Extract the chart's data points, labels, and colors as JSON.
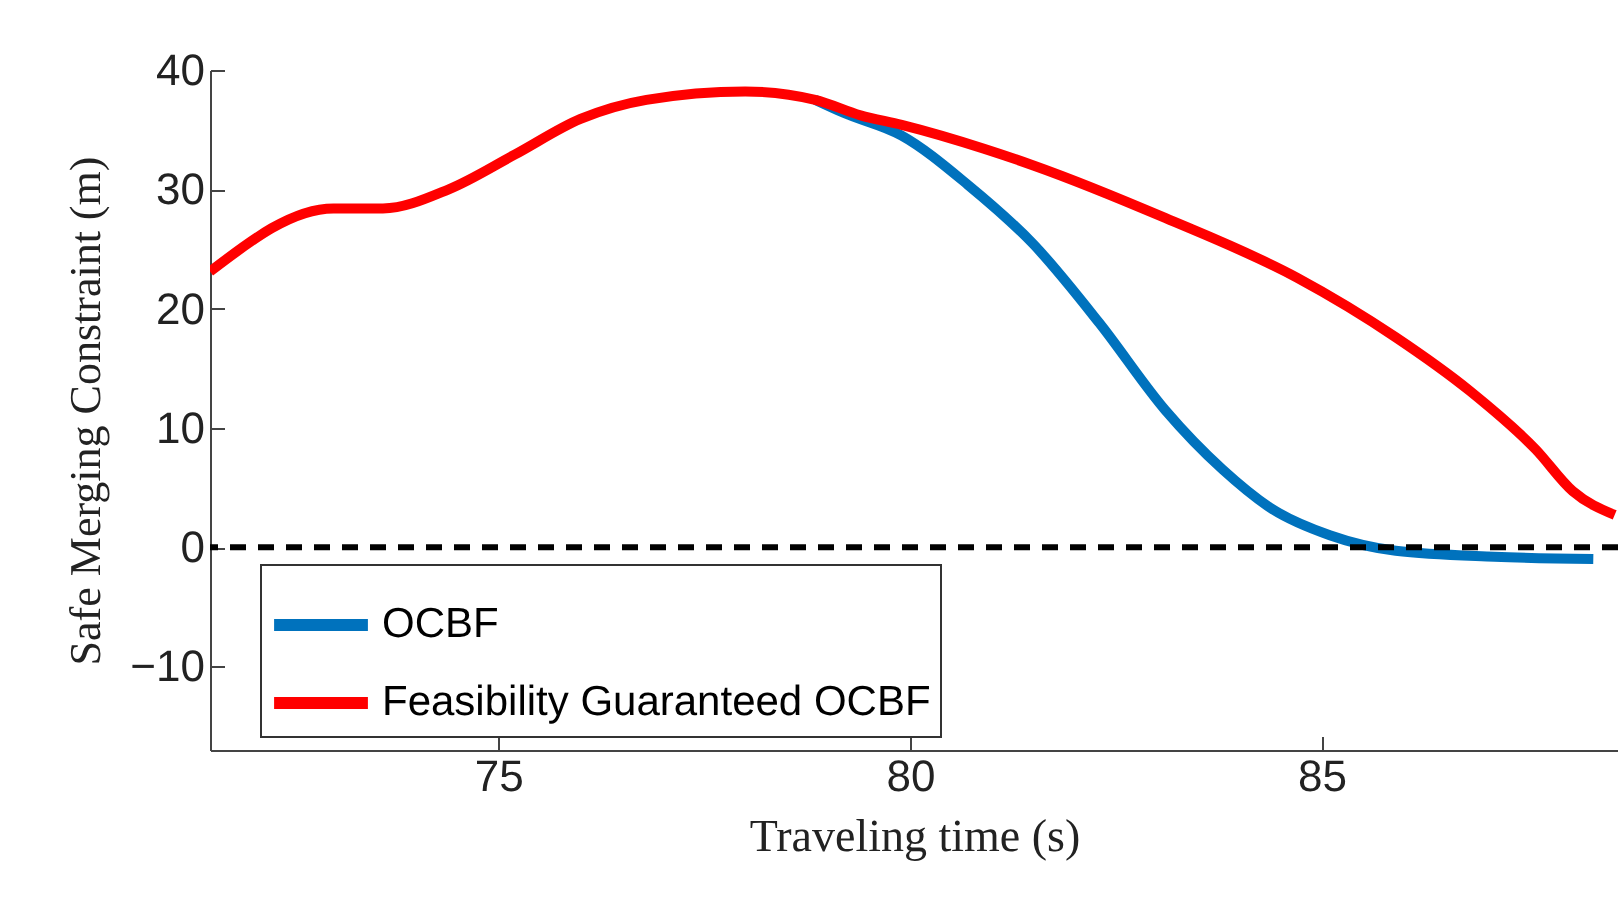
{
  "chart_data": {
    "type": "line",
    "xlabel": "Traveling time (s)",
    "ylabel": "Safe Merging Constraint (m)",
    "xlim": [
      71.5,
      88.6
    ],
    "ylim": [
      -17,
      40
    ],
    "xticks": [
      75,
      80,
      85
    ],
    "yticks": [
      -10,
      0,
      10,
      20,
      30,
      40
    ],
    "series": [
      {
        "name": "OCBF",
        "color": "#0072bd",
        "x": [
          78.85,
          79.2,
          79.9,
          80.7,
          81.5,
          82.3,
          83.1,
          83.8,
          84.4,
          85.1,
          85.9,
          87.1,
          88.3
        ],
        "values": [
          37.5,
          36.4,
          34.5,
          30.4,
          25.4,
          18.8,
          11.5,
          6.5,
          3.2,
          1.0,
          -0.3,
          -0.8,
          -1.0
        ]
      },
      {
        "name": "Feasibility Guaranteed OCBF",
        "color": "#ff0000",
        "x": [
          71.5,
          73.0,
          73.6,
          74.4,
          75.2,
          76.0,
          76.8,
          78.0,
          78.85,
          79.4,
          79.9,
          80.9,
          81.5,
          83.1,
          84.7,
          85.9,
          86.8,
          87.6,
          88.05,
          88.56
        ],
        "values": [
          23.1,
          28.4,
          28.4,
          30.0,
          32.9,
          35.9,
          37.5,
          38.2,
          37.5,
          36.2,
          35.4,
          33.4,
          32.0,
          27.6,
          22.6,
          17.6,
          13.1,
          8.2,
          4.7,
          2.7
        ]
      }
    ],
    "ref_lines": [
      {
        "axis": "y",
        "value": 0,
        "color": "#000000",
        "line_style": "dashed"
      }
    ],
    "legend": "bottom left",
    "grid": false,
    "line_style": "solid",
    "marker": "none"
  }
}
